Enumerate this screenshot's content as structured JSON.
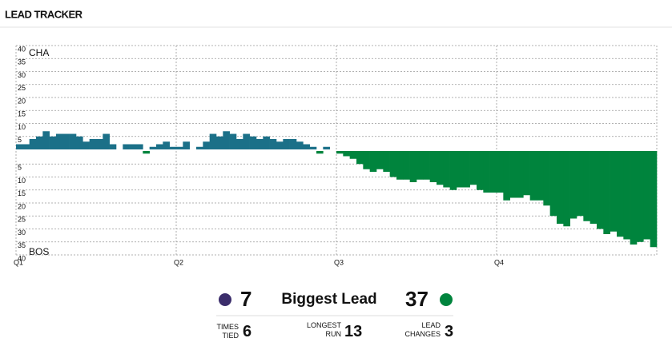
{
  "title": "LEAD TRACKER",
  "chart_data": {
    "type": "lead",
    "x": [
      0,
      0.5,
      1,
      1.5,
      2,
      2.5,
      3,
      3.5,
      4,
      4.5,
      5,
      5.5,
      6,
      6.5,
      7,
      7.5,
      8,
      8.5,
      9,
      9.5,
      10,
      10.5,
      11,
      11.5,
      12,
      12.5,
      13,
      13.5,
      14,
      14.5,
      15,
      15.5,
      16,
      16.5,
      17,
      17.5,
      18,
      18.5,
      19,
      19.5,
      20,
      20.5,
      21,
      21.5,
      22,
      22.5,
      23,
      23.5,
      24,
      24.5,
      25,
      25.5,
      26,
      26.5,
      27,
      27.5,
      28,
      28.5,
      29,
      29.5,
      30,
      30.5,
      31,
      31.5,
      32,
      32.5,
      33,
      33.5,
      34,
      34.5,
      35,
      35.5,
      36,
      36.5,
      37,
      37.5,
      38,
      38.5,
      39,
      39.5,
      40,
      40.5,
      41,
      41.5,
      42,
      42.5,
      43,
      43.5,
      44,
      44.5,
      45,
      45.5,
      46,
      46.5,
      47,
      47.5
    ],
    "values": [
      2,
      2,
      4,
      5,
      7,
      5,
      6,
      6,
      6,
      5,
      3,
      4,
      4,
      6,
      2,
      0,
      2,
      2,
      2,
      -1,
      1,
      2,
      3,
      1,
      1,
      3,
      0,
      1,
      3,
      6,
      5,
      7,
      6,
      4,
      6,
      5,
      4,
      5,
      4,
      3,
      4,
      4,
      3,
      2,
      1,
      -1,
      1,
      0,
      -1,
      -2,
      -3,
      -5,
      -7,
      -8,
      -7,
      -8,
      -10,
      -11,
      -11,
      -12,
      -11,
      -11,
      -12,
      -13,
      -14,
      -15,
      -14,
      -14,
      -13,
      -15,
      -16,
      -16,
      -16,
      -19,
      -18,
      -18,
      -17,
      -19,
      -19,
      -21,
      -25,
      -28,
      -29,
      -26,
      -25,
      -27,
      -28,
      -30,
      -32,
      -31,
      -33,
      -34,
      -36,
      -35,
      -34,
      -37
    ],
    "xlim": [
      0,
      48
    ],
    "xticks": [
      {
        "value": 0,
        "label": "Q1"
      },
      {
        "value": 12,
        "label": "Q2"
      },
      {
        "value": 24,
        "label": "Q3"
      },
      {
        "value": 36,
        "label": "Q4"
      }
    ],
    "ylim": [
      -40,
      40
    ],
    "yticks": [
      40,
      35,
      30,
      25,
      20,
      15,
      10,
      5,
      {
        "value": -5,
        "label": "5"
      },
      {
        "value": -10,
        "label": "10"
      },
      {
        "value": -15,
        "label": "15"
      },
      {
        "value": -20,
        "label": "20"
      },
      {
        "value": -25,
        "label": "25"
      },
      {
        "value": -30,
        "label": "30"
      },
      {
        "value": -35,
        "label": "35"
      },
      {
        "value": -40,
        "label": "40"
      }
    ],
    "grid": true,
    "color_positive": "#1b7088",
    "color_negative": "#00843d",
    "top_label": "CHA",
    "bottom_label": "BOS"
  },
  "stats": {
    "home_biggest": "7",
    "biggest_label": "Biggest Lead",
    "away_biggest": "37",
    "times_tied_label": "TIMES TIED",
    "times_tied": "6",
    "longest_run_label": "LONGEST RUN",
    "longest_run": "13",
    "lead_changes_label": "LEAD CHANGES",
    "lead_changes": "3"
  }
}
